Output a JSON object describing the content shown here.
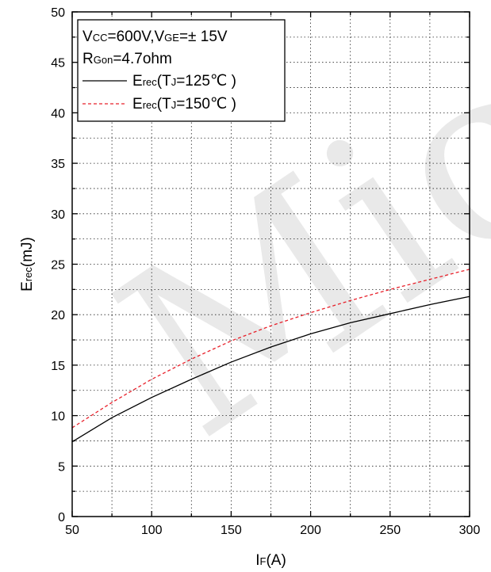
{
  "chart_data": {
    "type": "line",
    "xlabel": {
      "main": "I",
      "sub": "F",
      "rest": "(A)"
    },
    "ylabel": {
      "main": "E",
      "sub": "rec",
      "rest": "(mJ)"
    },
    "xlim": [
      50,
      300
    ],
    "ylim": [
      0,
      50
    ],
    "x_major_ticks": [
      50,
      100,
      150,
      200,
      250,
      300
    ],
    "y_major_ticks": [
      0,
      5,
      10,
      15,
      20,
      25,
      30,
      35,
      40,
      45,
      50
    ],
    "grid": true,
    "legend_position": "top-left",
    "conditions": [
      {
        "parts": [
          {
            "t": "V",
            "s": false
          },
          {
            "t": "CC",
            "s": true
          },
          {
            "t": "=600V,V",
            "s": false
          },
          {
            "t": "GE",
            "s": true
          },
          {
            "t": "=± 15V",
            "s": false
          }
        ]
      },
      {
        "parts": [
          {
            "t": "R",
            "s": false
          },
          {
            "t": "Gon",
            "s": true
          },
          {
            "t": "=4.7ohm",
            "s": false
          }
        ]
      }
    ],
    "series": [
      {
        "name_parts": [
          {
            "t": "E",
            "s": false
          },
          {
            "t": "rec",
            "s": true
          },
          {
            "t": "(T",
            "s": false
          },
          {
            "t": "J",
            "s": true
          },
          {
            "t": "=125℃ )",
            "s": false
          }
        ],
        "color": "#000000",
        "dash": "solid",
        "x": [
          50,
          75,
          100,
          125,
          150,
          175,
          200,
          225,
          250,
          275,
          300
        ],
        "y": [
          7.4,
          9.8,
          11.8,
          13.6,
          15.3,
          16.8,
          18.1,
          19.2,
          20.1,
          21.0,
          21.8
        ]
      },
      {
        "name_parts": [
          {
            "t": "E",
            "s": false
          },
          {
            "t": "rec",
            "s": true
          },
          {
            "t": "(T",
            "s": false
          },
          {
            "t": "J",
            "s": true
          },
          {
            "t": "=150℃ )",
            "s": false
          }
        ],
        "color": "#e8202a",
        "dash": "dashed",
        "x": [
          50,
          75,
          100,
          125,
          150,
          175,
          200,
          225,
          250,
          275,
          300
        ],
        "y": [
          8.8,
          11.3,
          13.6,
          15.6,
          17.4,
          18.9,
          20.2,
          21.4,
          22.5,
          23.5,
          24.5
        ]
      }
    ]
  },
  "watermark": {
    "text": "Micro",
    "color": "#e9e9e9"
  }
}
